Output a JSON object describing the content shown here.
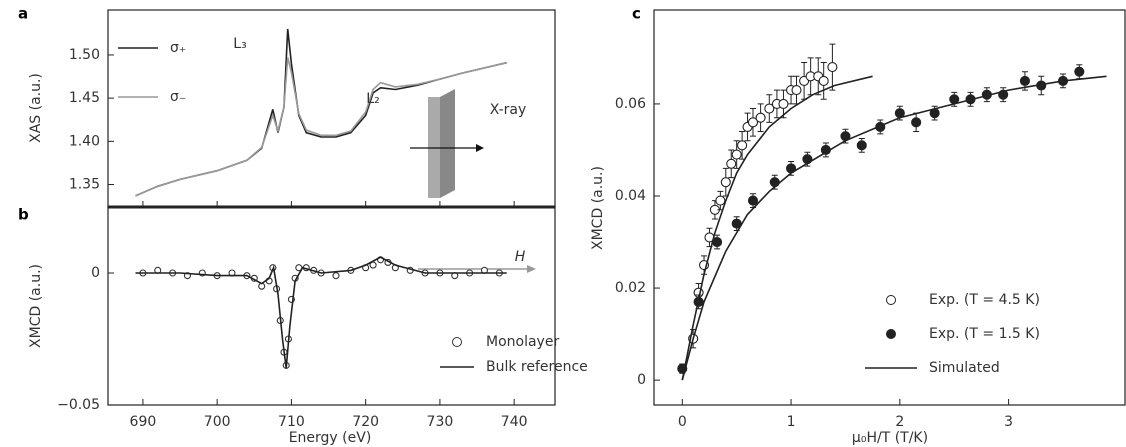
{
  "chart_data": [
    {
      "type": "line",
      "panel_label": "a",
      "ylabel": "XAS (a.u.)",
      "xlim": [
        685.3,
        745.5
      ],
      "xticks": [
        690,
        700,
        710,
        720,
        730,
        740
      ],
      "ylim": [
        1.324,
        1.552
      ],
      "yticks": [
        1.35,
        {
          "value": 1.4,
          "label": "1.40"
        },
        1.45,
        {
          "value": 1.5,
          "label": "1.50"
        }
      ],
      "legend": "upper left",
      "annotations": [
        "L₃",
        "L₂",
        "X-ray",
        "H"
      ],
      "series": [
        {
          "name": "σ₊",
          "color": "#222222",
          "style": "line",
          "x": [
            689,
            692,
            695,
            700,
            704,
            706,
            707.5,
            708.2,
            709,
            709.5,
            710,
            711,
            712,
            714,
            716,
            718,
            720,
            721,
            722,
            724,
            727,
            730,
            733,
            736,
            739
          ],
          "values": [
            1.337,
            1.348,
            1.356,
            1.366,
            1.378,
            1.392,
            1.437,
            1.41,
            1.44,
            1.53,
            1.49,
            1.43,
            1.41,
            1.405,
            1.405,
            1.41,
            1.43,
            1.456,
            1.462,
            1.46,
            1.465,
            1.472,
            1.479,
            1.485,
            1.491
          ]
        },
        {
          "name": "σ₋",
          "color": "#999999",
          "style": "line",
          "x": [
            689,
            692,
            695,
            700,
            704,
            706,
            707.5,
            708.2,
            709,
            709.5,
            710,
            711,
            712,
            714,
            716,
            718,
            720,
            721,
            722,
            724,
            727,
            730,
            733,
            736,
            739
          ],
          "values": [
            1.337,
            1.348,
            1.356,
            1.366,
            1.378,
            1.393,
            1.43,
            1.412,
            1.44,
            1.497,
            1.48,
            1.432,
            1.413,
            1.407,
            1.407,
            1.412,
            1.434,
            1.46,
            1.468,
            1.463,
            1.466,
            1.472,
            1.479,
            1.485,
            1.491
          ]
        }
      ]
    },
    {
      "type": "line",
      "panel_label": "b",
      "ylabel": "XMCD (a.u.)",
      "xlabel": "Energy (eV)",
      "xlim": [
        685.3,
        745.5
      ],
      "xticks": [
        690,
        700,
        710,
        720,
        730,
        740
      ],
      "ylim": [
        -0.05,
        0.025
      ],
      "yticks": [
        {
          "value": -0.05,
          "label": "−0.05"
        },
        0
      ],
      "legend": "lower right",
      "series": [
        {
          "name": "Monolayer",
          "color": "#333333",
          "style": "open",
          "x": [
            690,
            692,
            694,
            696,
            698,
            700,
            702,
            704,
            705,
            706,
            707,
            707.5,
            708,
            708.5,
            709,
            709.3,
            709.6,
            710,
            710.5,
            711,
            712,
            713,
            714,
            716,
            718,
            720,
            721,
            722,
            723,
            724,
            726,
            728,
            730,
            732,
            734,
            736,
            738
          ],
          "values": [
            0,
            0.001,
            0,
            -0.001,
            0,
            -0.001,
            0,
            -0.001,
            -0.002,
            -0.005,
            -0.003,
            0.002,
            -0.006,
            -0.018,
            -0.03,
            -0.035,
            -0.025,
            -0.01,
            -0.002,
            0.002,
            0.002,
            0.001,
            0,
            -0.001,
            0.001,
            0.002,
            0.003,
            0.005,
            0.004,
            0.002,
            0.001,
            0,
            0,
            -0.001,
            0,
            0.001,
            0
          ]
        },
        {
          "name": "Bulk reference",
          "color": "#222222",
          "style": "line",
          "x": [
            689,
            695,
            700,
            704,
            706,
            707,
            707.6,
            708.2,
            708.8,
            709.3,
            709.8,
            710.5,
            711.5,
            714,
            718,
            720,
            722,
            724,
            728,
            733,
            739
          ],
          "values": [
            0,
            0,
            -0.001,
            -0.001,
            -0.004,
            -0.002,
            0.002,
            -0.008,
            -0.025,
            -0.036,
            -0.02,
            -0.003,
            0.002,
            0,
            0.001,
            0.003,
            0.006,
            0.003,
            0,
            0,
            0
          ]
        }
      ]
    },
    {
      "type": "scatter",
      "panel_label": "c",
      "ylabel": "XMCD (a.u.)",
      "xlabel": "μ₀H/T (T/K)",
      "xlim": [
        -0.26,
        4.07
      ],
      "xticks": [
        0,
        1,
        2,
        3
      ],
      "ylim": [
        -0.0054,
        0.0804
      ],
      "yticks": [
        0,
        0.02,
        0.04,
        0.06
      ],
      "legend": "lower right",
      "series": [
        {
          "name": "Exp. (T = 4.5 K)",
          "color": "#222222",
          "style": "open",
          "x": [
            0.1,
            0.15,
            0.2,
            0.25,
            0.3,
            0.35,
            0.4,
            0.45,
            0.5,
            0.55,
            0.6,
            0.65,
            0.72,
            0.8,
            0.87,
            0.93,
            1.0,
            1.05,
            1.12,
            1.18,
            1.25,
            1.3,
            1.38
          ],
          "values": [
            0.009,
            0.019,
            0.025,
            0.031,
            0.037,
            0.039,
            0.043,
            0.047,
            0.049,
            0.051,
            0.055,
            0.056,
            0.057,
            0.059,
            0.06,
            0.06,
            0.063,
            0.063,
            0.065,
            0.066,
            0.066,
            0.065,
            0.068
          ],
          "errors": [
            0.002,
            0.002,
            0.002,
            0.002,
            0.002,
            0.002,
            0.003,
            0.003,
            0.003,
            0.003,
            0.003,
            0.003,
            0.003,
            0.003,
            0.003,
            0.003,
            0.003,
            0.003,
            0.004,
            0.004,
            0.004,
            0.004,
            0.005
          ]
        },
        {
          "name": "Exp. (T = 1.5 K)",
          "color": "#222222",
          "style": "filled",
          "x": [
            0,
            0.15,
            0.32,
            0.5,
            0.65,
            0.85,
            1.0,
            1.15,
            1.32,
            1.5,
            1.65,
            1.82,
            2.0,
            2.15,
            2.32,
            2.5,
            2.65,
            2.8,
            2.95,
            3.15,
            3.3,
            3.5,
            3.65
          ],
          "values": [
            0.0025,
            0.017,
            0.03,
            0.034,
            0.039,
            0.043,
            0.046,
            0.048,
            0.05,
            0.053,
            0.051,
            0.055,
            0.058,
            0.056,
            0.058,
            0.061,
            0.061,
            0.062,
            0.062,
            0.065,
            0.064,
            0.065,
            0.067
          ],
          "errors": [
            0.001,
            0.0015,
            0.0015,
            0.0015,
            0.0015,
            0.0015,
            0.0015,
            0.0015,
            0.0015,
            0.0015,
            0.0015,
            0.0015,
            0.0015,
            0.002,
            0.0015,
            0.0015,
            0.0015,
            0.0015,
            0.0015,
            0.002,
            0.002,
            0.0015,
            0.0015
          ]
        },
        {
          "name": "Simulated",
          "color": "#222222",
          "style": "line",
          "x": [
            0,
            0.1,
            0.2,
            0.3,
            0.4,
            0.5,
            0.6,
            0.8,
            1.0,
            1.2,
            1.4,
            1.75
          ],
          "values": [
            0,
            0.012,
            0.023,
            0.032,
            0.039,
            0.045,
            0.049,
            0.055,
            0.059,
            0.062,
            0.064,
            0.066
          ]
        },
        {
          "color": "#222222",
          "style": "line",
          "x": [
            0,
            0.1,
            0.2,
            0.4,
            0.6,
            0.8,
            1.0,
            1.5,
            2.0,
            2.5,
            3.0,
            3.5,
            3.9
          ],
          "values": [
            0,
            0.009,
            0.017,
            0.028,
            0.036,
            0.041,
            0.045,
            0.052,
            0.057,
            0.06,
            0.063,
            0.065,
            0.066
          ]
        }
      ]
    }
  ]
}
